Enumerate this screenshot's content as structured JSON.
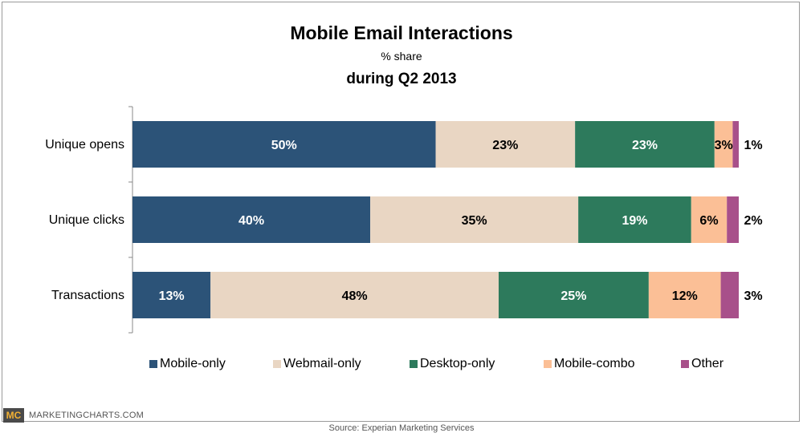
{
  "header": {
    "title": "Mobile Email Interactions",
    "subtitle": "% share",
    "period": "during Q2 2013"
  },
  "chart_data": {
    "type": "bar",
    "orientation": "horizontal",
    "stacked": true,
    "categories": [
      "Unique opens",
      "Unique clicks",
      "Transactions"
    ],
    "series": [
      {
        "name": "Mobile-only",
        "values": [
          50,
          40,
          13
        ],
        "color": "#2c5378",
        "label_color": "#ffffff"
      },
      {
        "name": "Webmail-only",
        "values": [
          23,
          35,
          48
        ],
        "color": "#e9d6c3",
        "label_color": "#000000"
      },
      {
        "name": "Desktop-only",
        "values": [
          23,
          19,
          25
        ],
        "color": "#2d7a5c",
        "label_color": "#ffffff"
      },
      {
        "name": "Mobile-combo",
        "values": [
          3,
          6,
          12
        ],
        "color": "#fbbf96",
        "label_color": "#000000"
      },
      {
        "name": "Other",
        "values": [
          1,
          2,
          3
        ],
        "color": "#a8508a",
        "label_color": "#000000"
      }
    ],
    "value_suffix": "%",
    "xlim": [
      0,
      100
    ],
    "grid": false,
    "legend": "bottom"
  },
  "footer": {
    "logo": "MC",
    "brand": "MARKETINGCHARTS.COM",
    "source": "Source: Experian Marketing Services"
  }
}
